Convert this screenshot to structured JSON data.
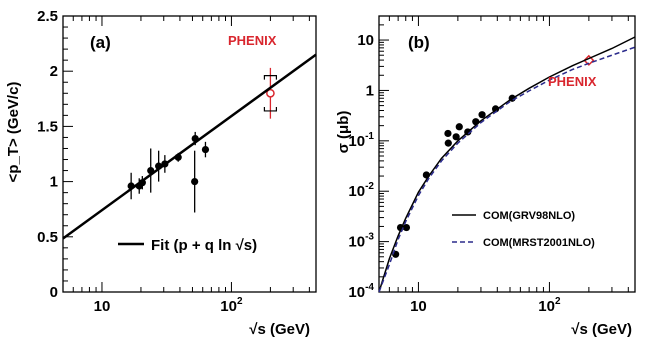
{
  "chart_data": [
    {
      "type": "scatter",
      "panel_label": "(a)",
      "xlabel": "√s (GeV)",
      "ylabel": "<p_T> (GeV/c)",
      "x_scale": "log",
      "xlim": [
        5,
        450
      ],
      "ylim": [
        0,
        2.5
      ],
      "x_ticks": [
        {
          "value": 10,
          "label": "10",
          "sup": ""
        },
        {
          "value": 100,
          "label": "10",
          "sup": "2"
        }
      ],
      "y_ticks": [
        {
          "value": 0,
          "label": "0"
        },
        {
          "value": 0.5,
          "label": "0.5"
        },
        {
          "value": 1,
          "label": "1"
        },
        {
          "value": 1.5,
          "label": "1.5"
        },
        {
          "value": 2,
          "label": "2"
        },
        {
          "value": 2.5,
          "label": "2.5"
        }
      ],
      "series": [
        {
          "name": "",
          "marker": "filled-circle",
          "color": "#000000",
          "points": [
            {
              "x": 16.8,
              "y": 0.96,
              "err": 0.12
            },
            {
              "x": 19.4,
              "y": 0.96,
              "err": 0.07
            },
            {
              "x": 20.5,
              "y": 0.99,
              "err": 0.06
            },
            {
              "x": 23.8,
              "y": 1.1,
              "err": 0.2
            },
            {
              "x": 27.4,
              "y": 1.14,
              "err": 0.14
            },
            {
              "x": 30.6,
              "y": 1.16,
              "err": 0.08
            },
            {
              "x": 38.8,
              "y": 1.22,
              "err": 0.04
            },
            {
              "x": 52.5,
              "y": 1.39,
              "err": 0.06
            },
            {
              "x": 52,
              "y": 1.0,
              "err": 0.28
            },
            {
              "x": 63,
              "y": 1.29,
              "err": 0.07
            }
          ]
        },
        {
          "name": "PHENIX",
          "marker": "open-circle",
          "color": "#d9262e",
          "points": [
            {
              "x": 200,
              "y": 1.8,
              "err": 0.23,
              "sys": 0.16
            }
          ]
        },
        {
          "name": "Fit (p + q ln √s)",
          "type": "line",
          "color": "#000000",
          "x_from": 5,
          "x_to": 450,
          "y_from": 0.485,
          "y_to": 2.15
        }
      ],
      "annotations": [
        {
          "text": "PHENIX",
          "color": "#d9262e"
        }
      ],
      "legend": {
        "placement": "bottom-right",
        "entries": [
          "Fit (p + q ln √s)"
        ]
      }
    },
    {
      "type": "scatter",
      "panel_label": "(b)",
      "xlabel": "√s (GeV)",
      "ylabel": "σ (μb)",
      "x_scale": "log",
      "y_scale": "log",
      "xlim": [
        5,
        450
      ],
      "ylim": [
        0.0001,
        30
      ],
      "x_ticks": [
        {
          "value": 10,
          "label": "10",
          "sup": ""
        },
        {
          "value": 100,
          "label": "10",
          "sup": "2"
        }
      ],
      "y_ticks": [
        {
          "value": 0.0001,
          "label": "10",
          "sup": "-4"
        },
        {
          "value": 0.001,
          "label": "10",
          "sup": "-3"
        },
        {
          "value": 0.01,
          "label": "10",
          "sup": "-2"
        },
        {
          "value": 0.1,
          "label": "10",
          "sup": "-1"
        },
        {
          "value": 1,
          "label": "1",
          "sup": ""
        },
        {
          "value": 10,
          "label": "10",
          "sup": ""
        }
      ],
      "series": [
        {
          "name": "",
          "marker": "filled-circle",
          "color": "#000000",
          "points": [
            {
              "x": 6.7,
              "y": 0.00056
            },
            {
              "x": 7.3,
              "y": 0.0019
            },
            {
              "x": 8.1,
              "y": 0.0019
            },
            {
              "x": 11.5,
              "y": 0.021
            },
            {
              "x": 16.8,
              "y": 0.14
            },
            {
              "x": 16.9,
              "y": 0.09
            },
            {
              "x": 19.4,
              "y": 0.12
            },
            {
              "x": 20.5,
              "y": 0.19
            },
            {
              "x": 23.8,
              "y": 0.15
            },
            {
              "x": 27.4,
              "y": 0.24
            },
            {
              "x": 30.6,
              "y": 0.33
            },
            {
              "x": 38.8,
              "y": 0.43
            },
            {
              "x": 52,
              "y": 0.7
            }
          ]
        },
        {
          "name": "PHENIX",
          "marker": "open-diamond",
          "color": "#d9262e",
          "points": [
            {
              "x": 200,
              "y": 3.95
            }
          ]
        },
        {
          "name": "COM(GRV98NLO)",
          "type": "line",
          "style": "solid",
          "color": "#000000",
          "points": [
            [
              5.0,
              9e-05
            ],
            [
              6.0,
              0.00046
            ],
            [
              7.0,
              0.0013
            ],
            [
              8.0,
              0.0029
            ],
            [
              10.0,
              0.0095
            ],
            [
              12.0,
              0.02
            ],
            [
              15.0,
              0.045
            ],
            [
              20.0,
              0.1
            ],
            [
              30.0,
              0.25
            ],
            [
              50.0,
              0.65
            ],
            [
              70.0,
              1.1
            ],
            [
              100.0,
              1.85
            ],
            [
              150.0,
              3.1
            ],
            [
              200.0,
              4.3
            ],
            [
              300.0,
              6.8
            ],
            [
              450.0,
              11.5
            ]
          ]
        },
        {
          "name": "COM(MRST2001NLO)",
          "type": "line",
          "style": "dashed",
          "color": "#2b2b8c",
          "points": [
            [
              5.0,
              6e-05
            ],
            [
              6.0,
              0.00035
            ],
            [
              7.0,
              0.0011
            ],
            [
              8.0,
              0.0025
            ],
            [
              10.0,
              0.0082
            ],
            [
              12.0,
              0.018
            ],
            [
              15.0,
              0.04
            ],
            [
              20.0,
              0.09
            ],
            [
              30.0,
              0.23
            ],
            [
              50.0,
              0.6
            ],
            [
              70.0,
              0.98
            ],
            [
              100.0,
              1.6
            ],
            [
              150.0,
              2.6
            ],
            [
              200.0,
              3.45
            ],
            [
              300.0,
              5.0
            ],
            [
              450.0,
              7.2
            ]
          ]
        }
      ],
      "annotations": [
        {
          "text": "PHENIX",
          "color": "#d9262e"
        }
      ],
      "legend": {
        "placement": "bottom-right",
        "entries": [
          "COM(GRV98NLO)",
          "COM(MRST2001NLO)"
        ]
      }
    }
  ]
}
